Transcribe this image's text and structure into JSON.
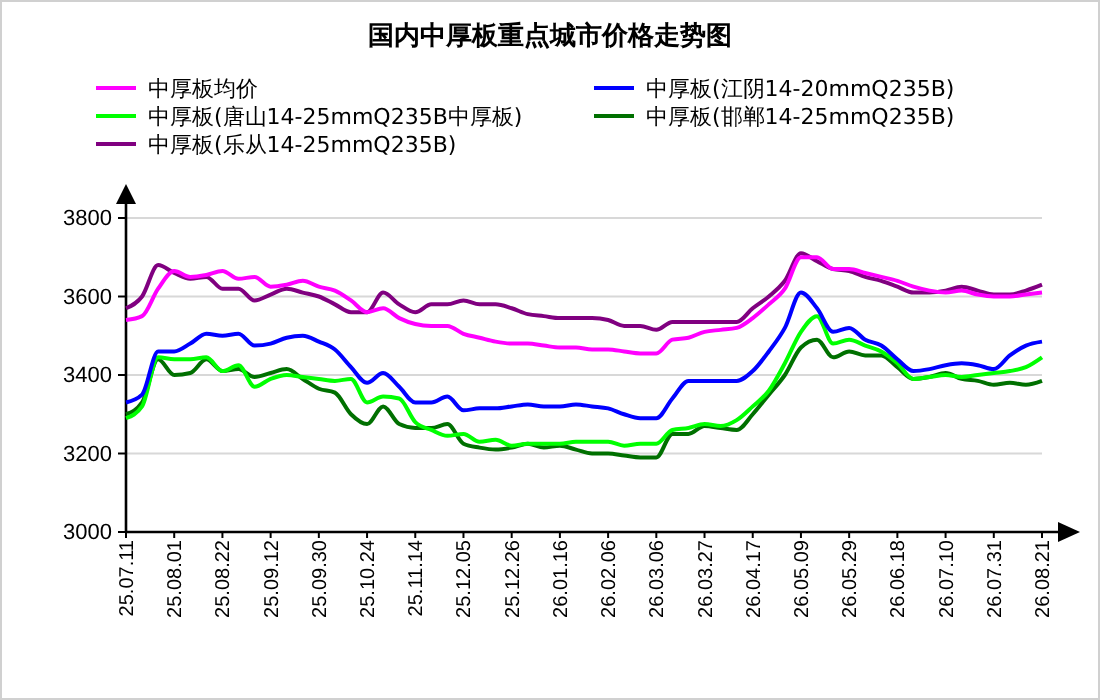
{
  "chart_data": {
    "type": "line",
    "title": "国内中厚板重点城市价格走势图",
    "categories": [
      "25.07.11",
      null,
      null,
      "25.08.01",
      null,
      null,
      "25.08.22",
      null,
      null,
      "25.09.12",
      null,
      null,
      "25.09.30",
      null,
      null,
      "25.10.24",
      null,
      null,
      "25.11.14",
      null,
      null,
      "25.12.05",
      null,
      null,
      "25.12.26",
      null,
      null,
      "26.01.16",
      null,
      null,
      "26.02.06",
      null,
      null,
      "26.03.06",
      null,
      null,
      "26.03.27",
      null,
      null,
      "26.04.17",
      null,
      null,
      "26.05.09",
      null,
      null,
      "26.05.29",
      null,
      null,
      "26.06.18",
      null,
      null,
      "26.07.10",
      null,
      null,
      "26.07.31",
      null,
      null,
      "26.08.21"
    ],
    "series": [
      {
        "name": "中厚板均价",
        "color": "#ff00ff",
        "values": [
          3540,
          3550,
          3620,
          3665,
          3650,
          3655,
          3665,
          3645,
          3650,
          3625,
          3630,
          3640,
          3625,
          3615,
          3590,
          3560,
          3570,
          3545,
          3530,
          3525,
          3525,
          3505,
          3495,
          3485,
          3480,
          3480,
          3475,
          3470,
          3470,
          3465,
          3465,
          3460,
          3455,
          3455,
          3490,
          3495,
          3510,
          3515,
          3520,
          3545,
          3580,
          3620,
          3700,
          3700,
          3670,
          3670,
          3660,
          3650,
          3640,
          3625,
          3615,
          3610,
          3615,
          3605,
          3600,
          3600,
          3605,
          3610
        ]
      },
      {
        "name": "中厚板(江阴14-20mmQ235B)",
        "color": "#0000ff",
        "values": [
          3330,
          3350,
          3460,
          3460,
          3480,
          3505,
          3500,
          3505,
          3475,
          3480,
          3495,
          3500,
          3485,
          3465,
          3420,
          3380,
          3405,
          3370,
          3330,
          3330,
          3345,
          3310,
          3315,
          3315,
          3320,
          3325,
          3320,
          3320,
          3325,
          3320,
          3315,
          3300,
          3290,
          3290,
          3340,
          3385,
          3385,
          3385,
          3385,
          3410,
          3460,
          3520,
          3610,
          3570,
          3510,
          3520,
          3490,
          3475,
          3440,
          3410,
          3415,
          3425,
          3430,
          3425,
          3415,
          3450,
          3475,
          3485
        ]
      },
      {
        "name": "中厚板(唐山14-25mmQ235B中厚板)",
        "color": "#00ff00",
        "values": [
          3290,
          3320,
          3445,
          3440,
          3440,
          3445,
          3410,
          3425,
          3370,
          3390,
          3400,
          3395,
          3390,
          3385,
          3390,
          3330,
          3345,
          3340,
          3280,
          3260,
          3245,
          3250,
          3230,
          3235,
          3220,
          3225,
          3225,
          3225,
          3230,
          3230,
          3230,
          3220,
          3225,
          3225,
          3260,
          3265,
          3275,
          3270,
          3285,
          3320,
          3360,
          3430,
          3510,
          3550,
          3480,
          3490,
          3475,
          3460,
          3430,
          3390,
          3395,
          3400,
          3395,
          3400,
          3405,
          3410,
          3420,
          3445
        ]
      },
      {
        "name": "中厚板(邯郸14-25mmQ235B)",
        "color": "#007000",
        "values": [
          3300,
          3330,
          3440,
          3400,
          3405,
          3440,
          3410,
          3415,
          3395,
          3405,
          3415,
          3390,
          3365,
          3355,
          3300,
          3275,
          3320,
          3275,
          3265,
          3265,
          3275,
          3225,
          3215,
          3210,
          3215,
          3225,
          3215,
          3220,
          3210,
          3200,
          3200,
          3195,
          3190,
          3190,
          3250,
          3250,
          3270,
          3265,
          3260,
          3300,
          3350,
          3400,
          3470,
          3490,
          3445,
          3460,
          3450,
          3450,
          3420,
          3390,
          3395,
          3405,
          3390,
          3385,
          3375,
          3380,
          3375,
          3385
        ]
      },
      {
        "name": "中厚板(乐从14-25mmQ235B)",
        "color": "#800080",
        "values": [
          3570,
          3600,
          3680,
          3660,
          3645,
          3650,
          3620,
          3620,
          3590,
          3605,
          3620,
          3610,
          3600,
          3580,
          3560,
          3560,
          3610,
          3580,
          3560,
          3580,
          3580,
          3590,
          3580,
          3580,
          3570,
          3555,
          3550,
          3545,
          3545,
          3545,
          3540,
          3525,
          3525,
          3515,
          3535,
          3535,
          3535,
          3535,
          3535,
          3570,
          3600,
          3640,
          3710,
          3690,
          3670,
          3665,
          3650,
          3640,
          3625,
          3610,
          3610,
          3615,
          3625,
          3615,
          3605,
          3605,
          3615,
          3630
        ]
      }
    ],
    "ylim": [
      3000,
      3800
    ],
    "yticks": [
      3000,
      3200,
      3400,
      3600,
      3800
    ],
    "grid": "y",
    "legend": "top",
    "marker": "none",
    "line_style": "solid"
  }
}
